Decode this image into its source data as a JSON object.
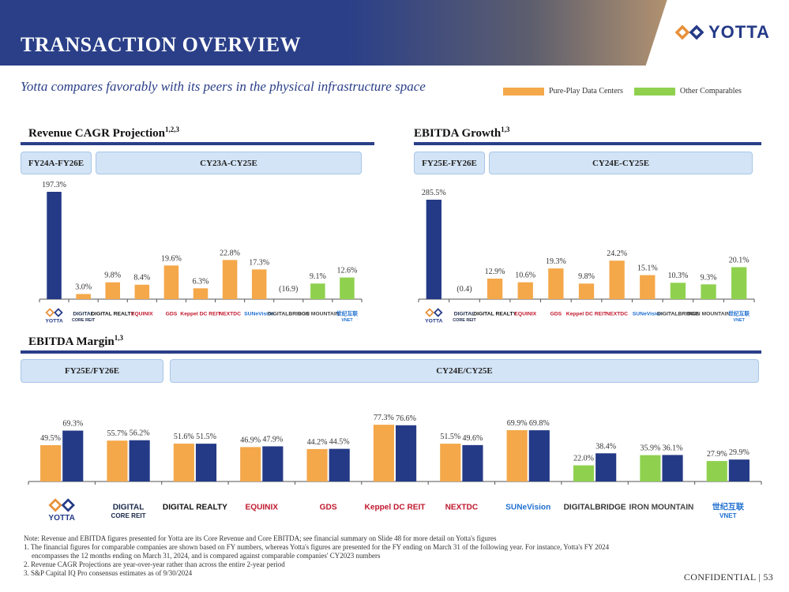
{
  "header": {
    "title": "TRANSACTION OVERVIEW",
    "logo_text": "YOTTA",
    "subtitle": "Yotta compares favorably with its peers in the physical infrastructure space"
  },
  "legend": [
    {
      "label": "Pure-Play Data Centers",
      "color": "#f4a84a"
    },
    {
      "label": "Other Comparables",
      "color": "#8fd14f"
    }
  ],
  "colors": {
    "yotta": "#243a86",
    "pure": "#f4a84a",
    "other": "#8fd14f"
  },
  "sections": {
    "revenue": {
      "title": "Revenue CAGR Projection",
      "sup": "1,2,3",
      "period_yotta": "FY24A-FY26E",
      "period_peers": "CY23A-CY25E"
    },
    "growth": {
      "title": "EBITDA Growth",
      "sup": "1,3",
      "period_yotta": "FY25E-FY26E",
      "period_peers": "CY24E-CY25E"
    },
    "margin": {
      "title": "EBITDA Margin",
      "sup": "1,3",
      "period_yotta": "FY25E/FY26E",
      "period_peers": "CY24E/CY25E"
    }
  },
  "companies": [
    {
      "name": "YOTTA",
      "sub": "",
      "color": "#243a86"
    },
    {
      "name": "DIGITAL",
      "sub": "CORE REIT",
      "color": "#1a2a4a"
    },
    {
      "name": "DIGITAL REALTY",
      "sub": "",
      "color": "#111111"
    },
    {
      "name": "EQUINIX",
      "sub": "",
      "color": "#c0182d"
    },
    {
      "name": "GDS",
      "sub": "",
      "color": "#c0182d"
    },
    {
      "name": "Keppel DC REIT",
      "sub": "",
      "color": "#c0182d"
    },
    {
      "name": "NEXTDC",
      "sub": "",
      "color": "#c0182d"
    },
    {
      "name": "SUNeVision",
      "sub": "",
      "color": "#1f6fd0"
    },
    {
      "name": "DIGITALBRIDGE",
      "sub": "",
      "color": "#333333"
    },
    {
      "name": "IRON MOUNTAIN",
      "sub": "",
      "color": "#444444"
    },
    {
      "name": "世纪互联",
      "sub": "VNET",
      "color": "#1f6fd0"
    }
  ],
  "chart_data": [
    {
      "type": "bar",
      "title": "Revenue CAGR Projection",
      "categories": [
        "Yotta",
        "Digital Core REIT",
        "Digital Realty",
        "Equinix",
        "GDS",
        "Keppel DC REIT",
        "NextDC",
        "SUNeVision",
        "DigitalBridge",
        "Iron Mountain",
        "VNET"
      ],
      "values": [
        197.3,
        3.0,
        9.8,
        8.4,
        19.6,
        6.3,
        22.8,
        17.3,
        -16.9,
        9.1,
        12.6
      ],
      "labels": [
        "197.3%",
        "3.0%",
        "9.8%",
        "8.4%",
        "19.6%",
        "6.3%",
        "22.8%",
        "17.3%",
        "(16.9)",
        "9.1%",
        "12.6%"
      ],
      "groups": [
        "yotta",
        "pure",
        "pure",
        "pure",
        "pure",
        "pure",
        "pure",
        "pure",
        "other",
        "other",
        "other"
      ]
    },
    {
      "type": "bar",
      "title": "EBITDA Growth",
      "categories": [
        "Yotta",
        "Digital Core REIT",
        "Digital Realty",
        "Equinix",
        "GDS",
        "Keppel DC REIT",
        "NextDC",
        "SUNeVision",
        "DigitalBridge",
        "Iron Mountain",
        "VNET"
      ],
      "values": [
        285.5,
        -0.4,
        12.9,
        10.6,
        19.3,
        9.8,
        24.2,
        15.1,
        10.3,
        9.3,
        20.1
      ],
      "labels": [
        "285.5%",
        "(0.4)",
        "12.9%",
        "10.6%",
        "19.3%",
        "9.8%",
        "24.2%",
        "15.1%",
        "10.3%",
        "9.3%",
        "20.1%"
      ],
      "groups": [
        "yotta",
        "pure",
        "pure",
        "pure",
        "pure",
        "pure",
        "pure",
        "pure",
        "other",
        "other",
        "other"
      ]
    },
    {
      "type": "bar",
      "title": "EBITDA Margin",
      "categories": [
        "Yotta",
        "Digital Core REIT",
        "Digital Realty",
        "Equinix",
        "GDS",
        "Keppel DC REIT",
        "NextDC",
        "SUNeVision",
        "DigitalBridge",
        "Iron Mountain",
        "VNET"
      ],
      "series": [
        {
          "name": "CY24E",
          "values": [
            49.5,
            55.7,
            51.6,
            46.9,
            44.2,
            77.3,
            51.5,
            69.9,
            22.0,
            35.9,
            27.9
          ],
          "labels": [
            "49.5%",
            "55.7%",
            "51.6%",
            "46.9%",
            "44.2%",
            "77.3%",
            "51.5%",
            "69.9%",
            "22.0%",
            "35.9%",
            "27.9%"
          ]
        },
        {
          "name": "CY25E",
          "values": [
            69.3,
            56.2,
            51.5,
            47.9,
            44.5,
            76.6,
            49.6,
            69.8,
            38.4,
            36.1,
            29.9
          ],
          "labels": [
            "69.3%",
            "56.2%",
            "51.5%",
            "47.9%",
            "44.5%",
            "76.6%",
            "49.6%",
            "69.8%",
            "38.4%",
            "36.1%",
            "29.9%"
          ]
        }
      ],
      "first_series_groups": [
        "pure",
        "pure",
        "pure",
        "pure",
        "pure",
        "pure",
        "pure",
        "pure",
        "other",
        "other",
        "other"
      ],
      "second_series_groups": [
        "yotta",
        "yotta",
        "yotta",
        "yotta",
        "yotta",
        "yotta",
        "yotta",
        "yotta",
        "yotta",
        "yotta",
        "yotta"
      ]
    }
  ],
  "notes": [
    "Note: Revenue and EBITDA figures presented for Yotta are its Core Revenue and Core EBITDA; see financial summary on Slide 48 for more detail on Yotta's figures",
    "1.  The financial figures for comparable companies are shown based on FY numbers, whereas Yotta's figures are presented for the FY ending on March 31 of the following year. For instance, Yotta's FY 2024 encompasses the 12 months ending on March 31, 2024, and is compared against comparable companies' CY2023 numbers",
    "2.  Revenue CAGR Projections are year-over-year rather than across the entire 2-year period",
    "3.  S&P Capital IQ Pro consensus estimates as of 9/30/2024"
  ],
  "footer": {
    "confidential": "CONFIDENTIAL",
    "page_number": "53"
  }
}
